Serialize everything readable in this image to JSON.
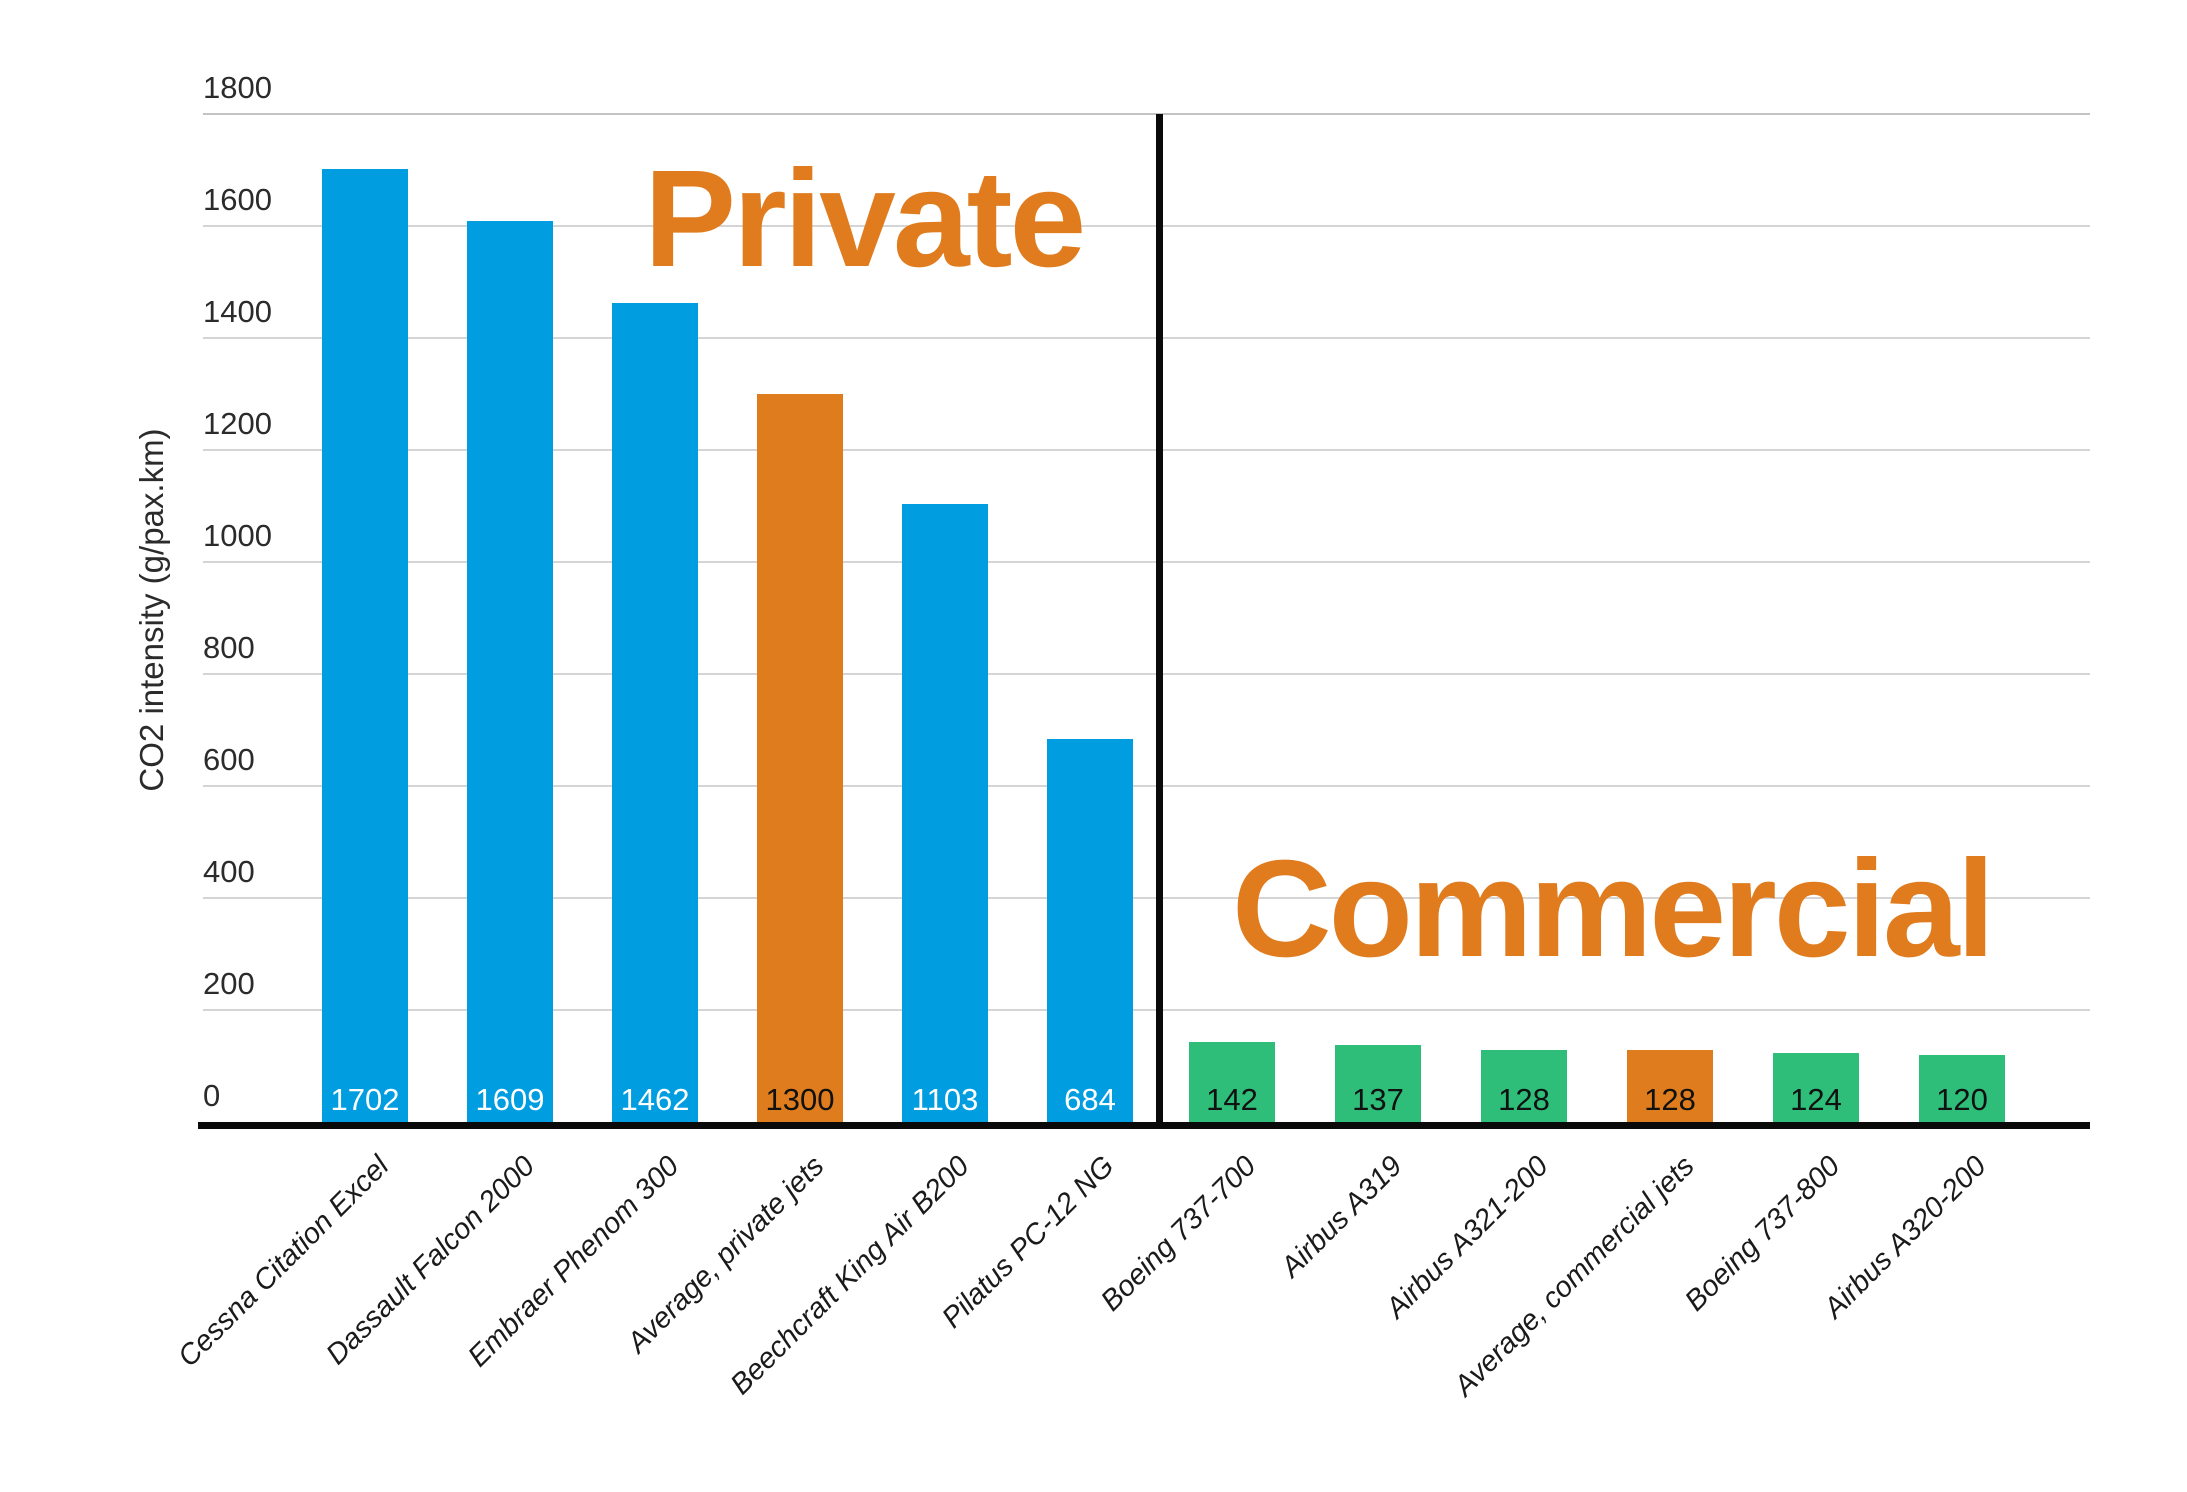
{
  "chart_data": {
    "type": "bar",
    "title": "",
    "ylabel": "CO2 intensity (g/pax.km)",
    "xlabel": "",
    "ylim": [
      0,
      1800
    ],
    "ytick_step": 200,
    "grid": true,
    "legend": "none",
    "section_labels": [
      {
        "label": "Private",
        "color": "#E07C1E"
      },
      {
        "label": "Commercial",
        "color": "#E07C1E"
      }
    ],
    "palette": {
      "private_jet_bar": "#009EE0",
      "commercial_jet_bar": "#2EBE7A",
      "average_bar": "#DF7D1E",
      "gridline": "#D5D5D5",
      "axis_line": "#0A0A0A"
    },
    "categories": [
      "Cessna Citation Excel",
      "Dassault Falcon 2000",
      "Embraer Phenom 300",
      "Average, private jets",
      "Beechcraft King Air B200",
      "Pilatus PC-12 NG",
      "Boeing 737-700",
      "Airbus A319",
      "Airbus A321-200",
      "Average, commercial jets",
      "Boeing 737-800",
      "Airbus A320-200"
    ],
    "values": [
      1702,
      1609,
      1462,
      1300,
      1103,
      684,
      142,
      137,
      128,
      128,
      124,
      120
    ],
    "bars": [
      {
        "category": "Cessna Citation Excel",
        "value": 1702,
        "group": "private",
        "color": "#009EE0",
        "value_label_color": "#FFFFFF"
      },
      {
        "category": "Dassault Falcon 2000",
        "value": 1609,
        "group": "private",
        "color": "#009EE0",
        "value_label_color": "#FFFFFF"
      },
      {
        "category": "Embraer Phenom 300",
        "value": 1462,
        "group": "private",
        "color": "#009EE0",
        "value_label_color": "#FFFFFF"
      },
      {
        "category": "Average, private jets",
        "value": 1300,
        "group": "private-average",
        "color": "#DF7D1E",
        "value_label_color": "#111111"
      },
      {
        "category": "Beechcraft King Air B200",
        "value": 1103,
        "group": "private",
        "color": "#009EE0",
        "value_label_color": "#FFFFFF"
      },
      {
        "category": "Pilatus PC-12 NG",
        "value": 684,
        "group": "private",
        "color": "#009EE0",
        "value_label_color": "#FFFFFF"
      },
      {
        "category": "Boeing 737-700",
        "value": 142,
        "group": "commercial",
        "color": "#2EBE7A",
        "value_label_color": "#111111"
      },
      {
        "category": "Airbus A319",
        "value": 137,
        "group": "commercial",
        "color": "#2EBE7A",
        "value_label_color": "#111111"
      },
      {
        "category": "Airbus A321-200",
        "value": 128,
        "group": "commercial",
        "color": "#2EBE7A",
        "value_label_color": "#111111"
      },
      {
        "category": "Average, commercial jets",
        "value": 128,
        "group": "commercial-average",
        "color": "#DF7D1E",
        "value_label_color": "#111111"
      },
      {
        "category": "Boeing 737-800",
        "value": 124,
        "group": "commercial",
        "color": "#2EBE7A",
        "value_label_color": "#111111"
      },
      {
        "category": "Airbus A320-200",
        "value": 120,
        "group": "commercial",
        "color": "#2EBE7A",
        "value_label_color": "#111111"
      }
    ]
  }
}
